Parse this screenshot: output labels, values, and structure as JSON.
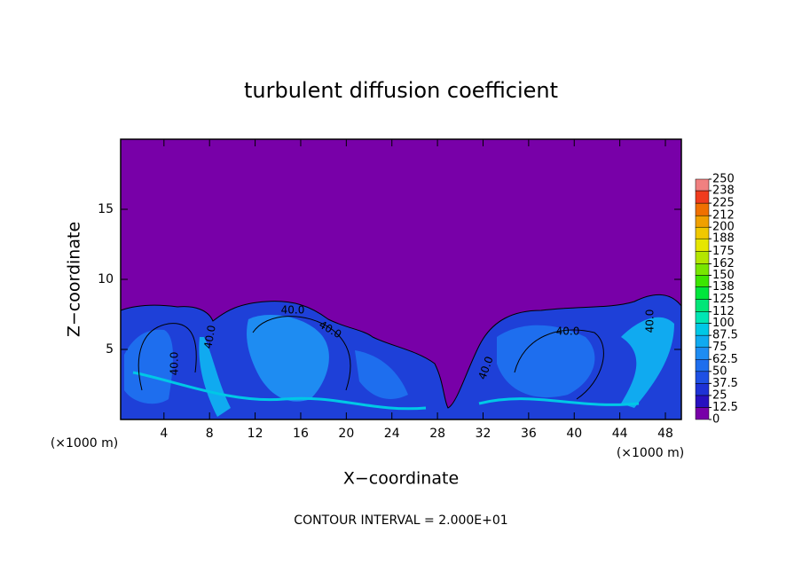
{
  "chart_data": {
    "type": "contour",
    "title": "turbulent diffusion coefficient",
    "xlabel": "X−coordinate",
    "ylabel": "Z−coordinate",
    "x_unit_left": "(×1000 m)",
    "x_unit_right": "(×1000 m)",
    "footnote": "CONTOUR INTERVAL = 2.000E+01",
    "xlim": [
      0.2,
      49.4
    ],
    "ylim": [
      0,
      20
    ],
    "xticks": [
      4,
      8,
      12,
      16,
      20,
      24,
      28,
      32,
      36,
      40,
      44,
      48
    ],
    "yticks": [
      5,
      10,
      15
    ],
    "annotations": [
      "40.0",
      "40.0",
      "40.0",
      "40.0",
      "40.0",
      "40.0",
      "40.0"
    ],
    "colorbar": {
      "clim": [
        0,
        250
      ],
      "ticks": [
        0,
        12.5,
        25,
        37.5,
        50,
        62.5,
        75,
        87.5,
        100,
        112,
        125,
        138,
        150,
        162,
        175,
        188,
        200,
        212,
        225,
        238,
        250
      ],
      "colors": [
        "#7800a8",
        "#2810c0",
        "#1e32d6",
        "#1e50e4",
        "#1e6eee",
        "#1e8cf2",
        "#10aaf0",
        "#00c8e6",
        "#00e6b4",
        "#00e678",
        "#00e63c",
        "#3ce600",
        "#78e600",
        "#b4e600",
        "#e6e600",
        "#f0c800",
        "#f0a000",
        "#f07000",
        "#f03c1e",
        "#f08080"
      ]
    }
  }
}
